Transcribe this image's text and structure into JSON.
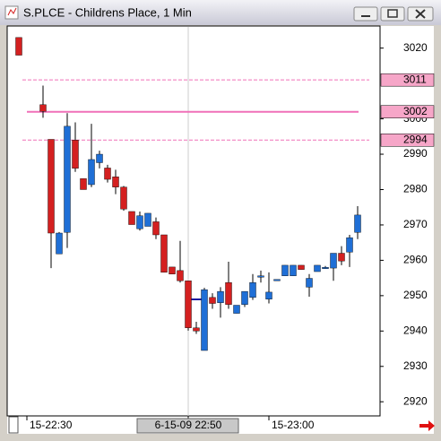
{
  "chart_data": {
    "type": "candlestick",
    "title": "S.PLCE - Childrens Place, 1 Min",
    "categories": [
      null,
      "15-22:30",
      null,
      null,
      null,
      null,
      null,
      null,
      null,
      null,
      null,
      null,
      null,
      null,
      null,
      null,
      null,
      null,
      null,
      null,
      null,
      "6-15-09 22:50",
      null,
      null,
      null,
      null,
      null,
      null,
      null,
      null,
      null,
      "15-23:00",
      null,
      null,
      null,
      null,
      null,
      null,
      null,
      null,
      null,
      null,
      null
    ],
    "open": [
      3023,
      null,
      null,
      3004,
      2994.2,
      2961.8,
      2967.9,
      2994,
      2983.1,
      2981.4,
      2987.6,
      2986.1,
      2983.6,
      2980.7,
      2973.8,
      2968.9,
      2969.6,
      2970.9,
      2967.2,
      2958.1,
      2957.1,
      2954.2,
      2940.9,
      2934.5,
      2949.5,
      2948,
      2953.7,
      2945,
      2947.5,
      2949.5,
      2955.6,
      2949,
      2954.6,
      2955.6,
      2955.6,
      2958.6,
      2952.4,
      2956.8,
      2958,
      2957.8,
      2962,
      2962.3,
      2967.9
    ],
    "high": [
      3023,
      null,
      null,
      3009.4,
      2994.2,
      2968,
      3001.6,
      2999,
      2983.1,
      2998.6,
      2991,
      2987,
      2985.6,
      2981,
      2973.8,
      2973.8,
      2973.3,
      2972.1,
      2967.2,
      2958.1,
      2965.5,
      2954.2,
      2942.6,
      2952.2,
      2950.7,
      2952.4,
      2959.6,
      2947.3,
      2951.2,
      2956.1,
      2957.1,
      2956.6,
      2954.6,
      2958.6,
      2958.6,
      2958.6,
      2956.1,
      2958.6,
      2958.4,
      2962,
      2964,
      2967.2,
      2975.3
    ],
    "low": [
      3018,
      null,
      null,
      3000.3,
      2957.8,
      2961.8,
      2963.5,
      2985,
      2980,
      2980.7,
      2986,
      2982,
      2978.7,
      2974,
      2970.1,
      2968.4,
      2969.6,
      2966,
      2956.6,
      2956.1,
      2953.7,
      2940.1,
      2939.2,
      2934.5,
      2946.3,
      2943.8,
      2946.3,
      2945,
      2946.8,
      2948.8,
      2953.7,
      2947.8,
      2954.6,
      2955.6,
      2955.6,
      2957.4,
      2949.7,
      2956.8,
      2957.6,
      2954.2,
      2958.6,
      2958.1,
      2966
    ],
    "close": [
      3018,
      null,
      null,
      3002.1,
      2967.7,
      2967.7,
      2997.9,
      2986,
      2980,
      2988.5,
      2990,
      2982.9,
      2980.7,
      2974.5,
      2970.1,
      2972.6,
      2973.3,
      2967.2,
      2956.6,
      2956.1,
      2954.2,
      2940.9,
      2940,
      2951.7,
      2947.8,
      2951.2,
      2947.5,
      2947.3,
      2951.2,
      2953.7,
      2955.6,
      2951,
      2954.6,
      2958.6,
      2958.6,
      2957.4,
      2954.9,
      2958.6,
      2958,
      2962,
      2959.8,
      2966.4,
      2972.8
    ],
    "up_color": "#1f6fd6",
    "down_color": "#d42020",
    "ylim": [
      2916,
      3026
    ],
    "yticks": [
      2920,
      2930,
      2940,
      2950,
      2960,
      2970,
      2980,
      2990,
      3000,
      3020
    ],
    "price_levels": [
      3011,
      3002,
      2994
    ],
    "level_styles": [
      "dashed",
      "solid",
      "dashed"
    ],
    "level_color": "#f070b8"
  }
}
